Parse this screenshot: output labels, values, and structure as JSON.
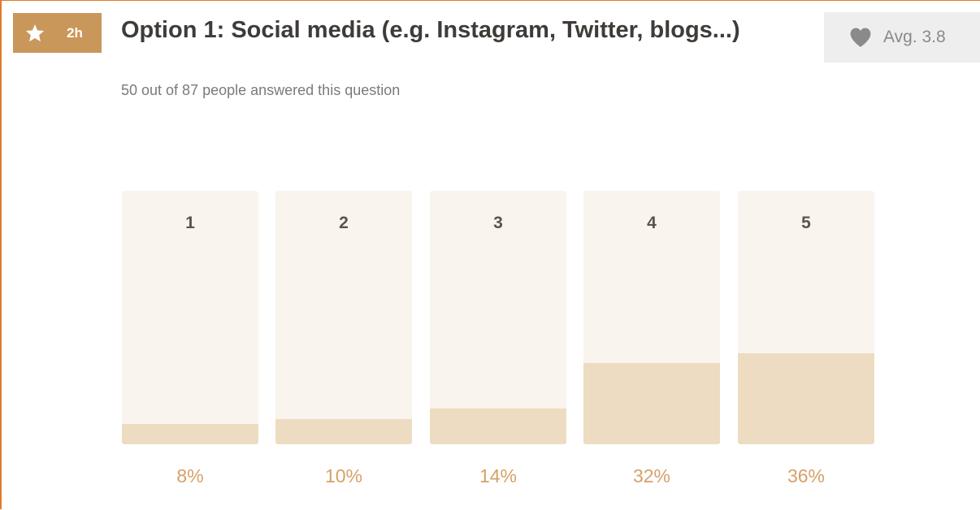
{
  "badge": {
    "icon": "star-icon",
    "time": "2h",
    "color": "#c9975a"
  },
  "question": {
    "title": "Option 1: Social media (e.g. Instagram, Twitter, blogs...)",
    "answered": "50 out of 87 people answered this question"
  },
  "average": {
    "icon": "heart-icon",
    "label": "Avg. 3.8"
  },
  "colors": {
    "border": "#e07a2c",
    "bar_background": "#faf4ee",
    "bar_fill": "#eddcc1",
    "percent_text": "#d6a067"
  },
  "chart_data": {
    "type": "bar",
    "categories": [
      "1",
      "2",
      "3",
      "4",
      "5"
    ],
    "values": [
      8,
      10,
      14,
      32,
      36
    ],
    "value_labels": [
      "8%",
      "10%",
      "14%",
      "32%",
      "36%"
    ],
    "ylim": [
      0,
      100
    ],
    "title": "",
    "xlabel": "",
    "ylabel": ""
  }
}
